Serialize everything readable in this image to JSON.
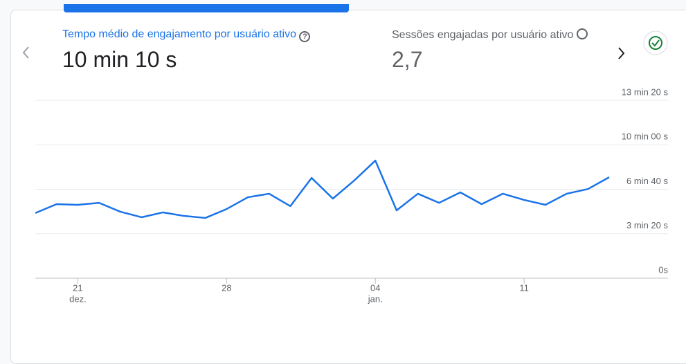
{
  "metrics": [
    {
      "title": "Tempo médio de engajamento por usuário ativo",
      "value": "10 min 10 s"
    },
    {
      "title": "Sessões engajadas por usuário ativo",
      "value": "2,7"
    }
  ],
  "chart_data": {
    "type": "line",
    "categories": [
      null,
      null,
      "21",
      null,
      null,
      null,
      null,
      null,
      null,
      "28",
      null,
      null,
      null,
      null,
      null,
      null,
      "04",
      null,
      null,
      null,
      null,
      null,
      null,
      "11",
      null,
      null,
      null,
      null
    ],
    "months": [
      null,
      null,
      "dez.",
      null,
      null,
      null,
      null,
      null,
      null,
      null,
      null,
      null,
      null,
      null,
      null,
      null,
      "jan.",
      null,
      null,
      null,
      null,
      null,
      null,
      null,
      null,
      null,
      null,
      null
    ],
    "series": [
      {
        "color": "#1a73e8",
        "values": [
          293,
          333,
          330,
          339,
          299,
          274,
          296,
          280,
          271,
          311,
          364,
          380,
          324,
          451,
          358,
          439,
          529,
          305,
          380,
          339,
          386,
          333,
          380,
          352,
          330,
          380,
          401,
          454
        ]
      }
    ],
    "ylim": [
      0,
      800
    ],
    "yticks": [
      {
        "value": 0,
        "label": "0s"
      },
      {
        "value": 200,
        "label": "3 min 20 s"
      },
      {
        "value": 400,
        "label": "6 min 40 s"
      },
      {
        "value": 600,
        "label": "10 min 00 s"
      },
      {
        "value": 800,
        "label": "13 min 20 s"
      }
    ],
    "grid": true
  }
}
